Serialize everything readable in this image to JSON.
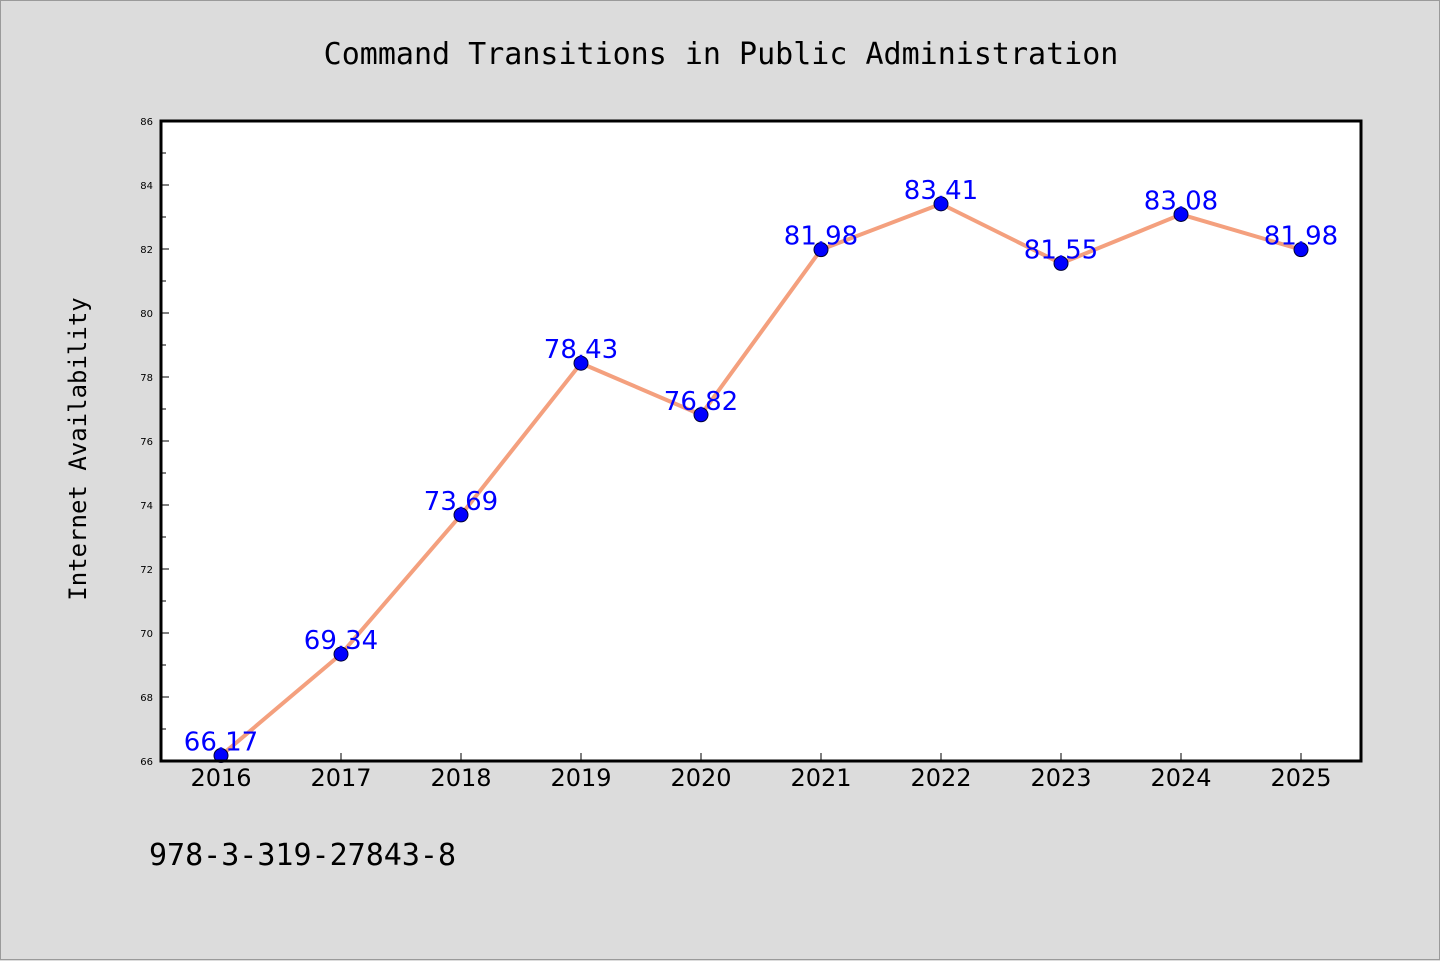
{
  "chart_data": {
    "type": "line",
    "title": "Command Transitions in Public Administration",
    "xlabel": "",
    "ylabel": "Internet Availability",
    "categories": [
      "2016",
      "2017",
      "2018",
      "2019",
      "2020",
      "2021",
      "2022",
      "2023",
      "2024",
      "2025"
    ],
    "series": [
      {
        "values": [
          66.17,
          69.34,
          73.69,
          78.43,
          76.82,
          81.98,
          83.41,
          81.55,
          83.08,
          81.98
        ],
        "data_labels": [
          "66.17",
          "69.34",
          "73.69",
          "78.43",
          "76.82",
          "81.98",
          "83.41",
          "81.55",
          "83.08",
          "81.98"
        ]
      }
    ],
    "ylim": [
      66,
      86
    ],
    "yticks": [
      66,
      68,
      70,
      72,
      74,
      76,
      78,
      80,
      82,
      84,
      86
    ],
    "grid": false,
    "colors": {
      "line": "#f4a07e",
      "marker": "#0000ff",
      "label": "#0000ff"
    }
  },
  "footer": {
    "text": "978-3-319-27843-8"
  }
}
